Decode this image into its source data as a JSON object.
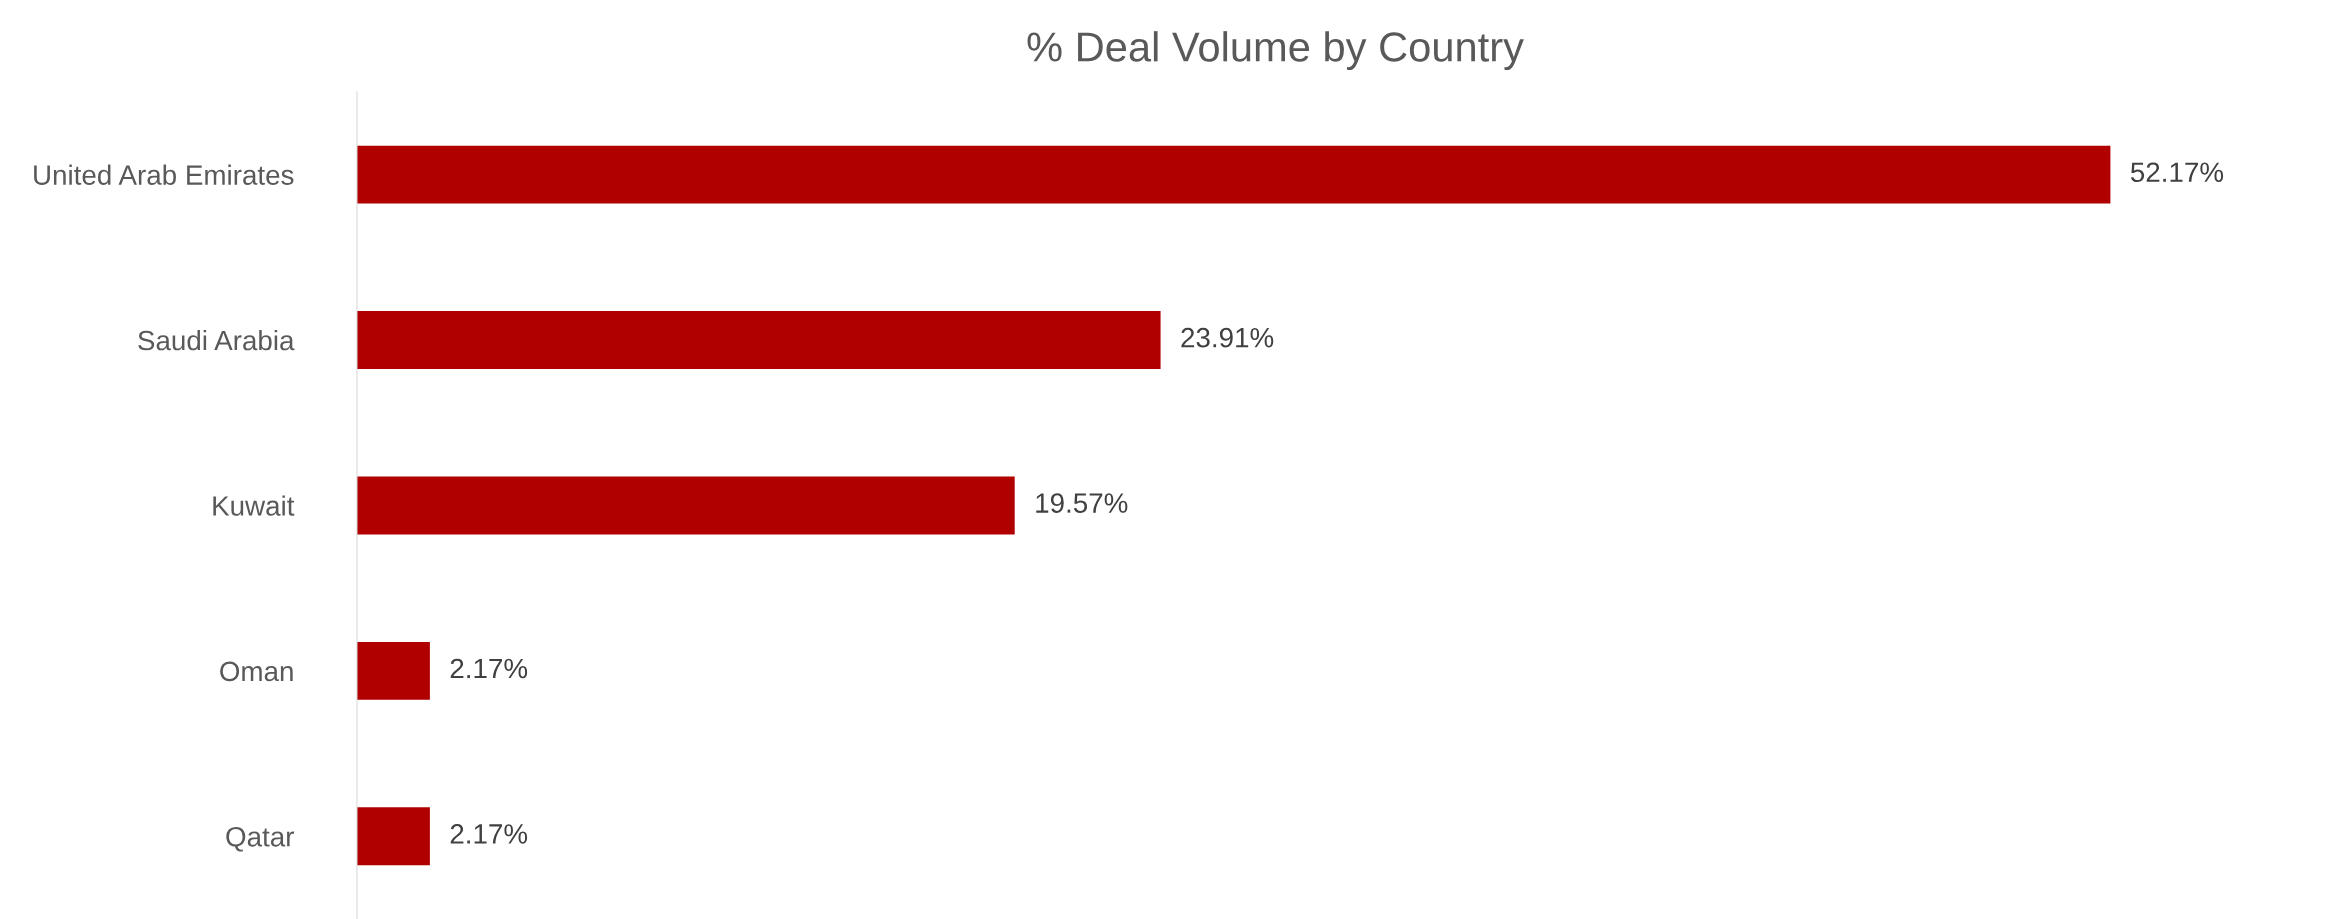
{
  "chart_data": {
    "type": "bar",
    "orientation": "horizontal",
    "title": "% Deal Volume by Country",
    "categories": [
      "United Arab Emirates",
      "Saudi Arabia",
      "Kuwait",
      "Oman",
      "Qatar"
    ],
    "values": [
      52.17,
      23.91,
      19.57,
      2.17,
      2.17
    ],
    "value_labels": [
      "52.17%",
      "23.91%",
      "19.57%",
      "2.17%",
      "2.17%"
    ],
    "color": "#b00000",
    "grid": false,
    "legend": false
  }
}
